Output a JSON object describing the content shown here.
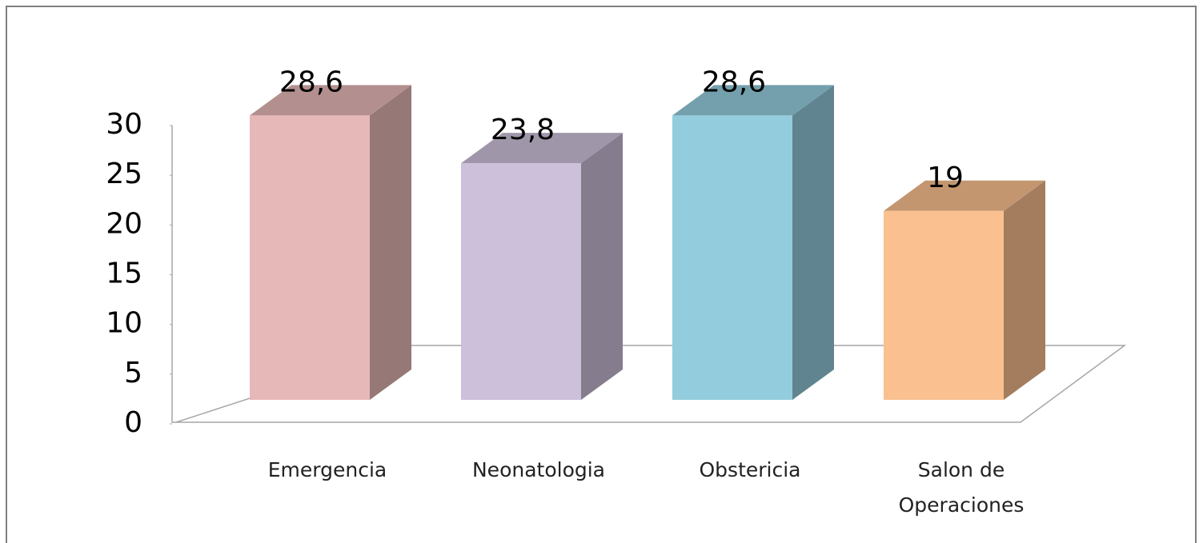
{
  "chart_data": {
    "type": "bar3d",
    "categories": [
      "Emergencia",
      "Neonatologia",
      "Obstericia",
      "Salon de Operaciones"
    ],
    "values": [
      28.6,
      23.8,
      28.6,
      19
    ],
    "value_labels": [
      "28,6",
      "23,8",
      "28,6",
      "19"
    ],
    "colors": [
      "#e6b8b7",
      "#ccc0da",
      "#93cddd",
      "#fac090"
    ],
    "ylim": [
      0,
      30
    ],
    "yticks": [
      0,
      5,
      10,
      15,
      20,
      25,
      30
    ],
    "grid": false
  }
}
